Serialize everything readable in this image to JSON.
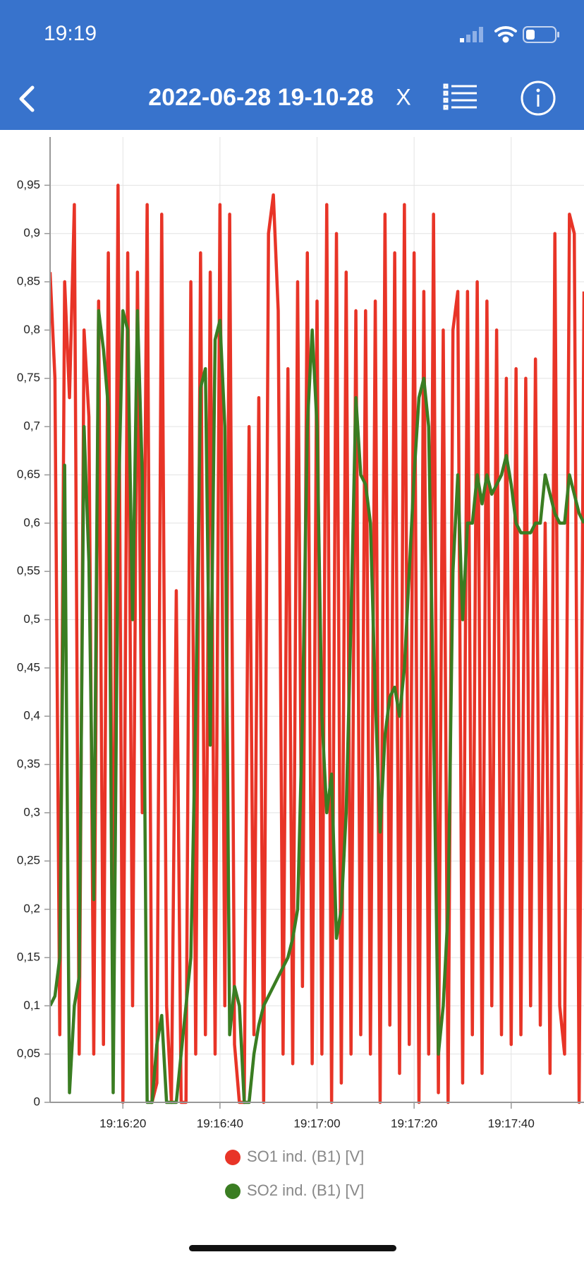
{
  "status_bar": {
    "time": "19:19"
  },
  "header": {
    "title": "2022-06-28 19-10-28",
    "close_label": "X"
  },
  "chart_data": {
    "type": "line",
    "x": [
      "19:16:05",
      "19:16:06",
      "19:16:07",
      "19:16:08",
      "19:16:09",
      "19:16:10",
      "19:16:11",
      "19:16:12",
      "19:16:13",
      "19:16:14",
      "19:16:15",
      "19:16:16",
      "19:16:17",
      "19:16:18",
      "19:16:19",
      "19:16:20",
      "19:16:21",
      "19:16:22",
      "19:16:23",
      "19:16:24",
      "19:16:25",
      "19:16:26",
      "19:16:27",
      "19:16:28",
      "19:16:29",
      "19:16:30",
      "19:16:31",
      "19:16:32",
      "19:16:33",
      "19:16:34",
      "19:16:35",
      "19:16:36",
      "19:16:37",
      "19:16:38",
      "19:16:39",
      "19:16:40",
      "19:16:41",
      "19:16:42",
      "19:16:43",
      "19:16:44",
      "19:16:45",
      "19:16:46",
      "19:16:47",
      "19:16:48",
      "19:16:49",
      "19:16:50",
      "19:16:51",
      "19:16:52",
      "19:16:53",
      "19:16:54",
      "19:16:55",
      "19:16:56",
      "19:16:57",
      "19:16:58",
      "19:16:59",
      "19:17:00",
      "19:17:01",
      "19:17:02",
      "19:17:03",
      "19:17:04",
      "19:17:05",
      "19:17:06",
      "19:17:07",
      "19:17:08",
      "19:17:09",
      "19:17:10",
      "19:17:11",
      "19:17:12",
      "19:17:13",
      "19:17:14",
      "19:17:15",
      "19:17:16",
      "19:17:17",
      "19:17:18",
      "19:17:19",
      "19:17:20",
      "19:17:21",
      "19:17:22",
      "19:17:23",
      "19:17:24",
      "19:17:25",
      "19:17:26",
      "19:17:27",
      "19:17:28",
      "19:17:29",
      "19:17:30",
      "19:17:31",
      "19:17:32",
      "19:17:33",
      "19:17:34",
      "19:17:35",
      "19:17:36",
      "19:17:37",
      "19:17:38",
      "19:17:39",
      "19:17:40",
      "19:17:41",
      "19:17:42",
      "19:17:43",
      "19:17:44",
      "19:17:45",
      "19:17:46",
      "19:17:47",
      "19:17:48",
      "19:17:49",
      "19:17:50",
      "19:17:51",
      "19:17:52",
      "19:17:53",
      "19:17:54",
      "19:17:55"
    ],
    "series": [
      {
        "name": "SO1 ind. (B1) [V]",
        "color": "#e83427",
        "values": [
          0.86,
          0.75,
          0.07,
          0.85,
          0.73,
          0.93,
          0.05,
          0.8,
          0.71,
          0.05,
          0.83,
          0.06,
          0.88,
          0.1,
          0.95,
          0.0,
          0.88,
          0.1,
          0.86,
          0.3,
          0.93,
          0.0,
          0.02,
          0.92,
          0.1,
          0.0,
          0.53,
          0.0,
          0.0,
          0.85,
          0.05,
          0.88,
          0.07,
          0.86,
          0.05,
          0.93,
          0.1,
          0.92,
          0.06,
          0.0,
          0.0,
          0.7,
          0.07,
          0.73,
          0.0,
          0.9,
          0.94,
          0.82,
          0.05,
          0.76,
          0.04,
          0.85,
          0.12,
          0.88,
          0.04,
          0.83,
          0.05,
          0.93,
          0.0,
          0.9,
          0.02,
          0.86,
          0.05,
          0.82,
          0.07,
          0.82,
          0.05,
          0.83,
          0.0,
          0.92,
          0.08,
          0.88,
          0.03,
          0.93,
          0.06,
          0.88,
          0.0,
          0.84,
          0.05,
          0.92,
          0.01,
          0.8,
          0.0,
          0.8,
          0.84,
          0.02,
          0.84,
          0.07,
          0.85,
          0.03,
          0.83,
          0.1,
          0.8,
          0.07,
          0.75,
          0.06,
          0.76,
          0.07,
          0.75,
          0.1,
          0.77,
          0.08,
          0.6,
          0.03,
          0.9,
          0.1,
          0.05,
          0.92,
          0.9,
          0.0,
          0.84
        ]
      },
      {
        "name": "SO2 ind. (B1) [V]",
        "color": "#3a7d22",
        "values": [
          0.1,
          0.11,
          0.15,
          0.66,
          0.01,
          0.1,
          0.13,
          0.7,
          0.56,
          0.21,
          0.82,
          0.78,
          0.72,
          0.01,
          0.6,
          0.82,
          0.8,
          0.5,
          0.82,
          0.65,
          0.0,
          0.0,
          0.06,
          0.09,
          0.0,
          0.0,
          0.0,
          0.05,
          0.1,
          0.15,
          0.4,
          0.74,
          0.76,
          0.37,
          0.79,
          0.81,
          0.7,
          0.07,
          0.12,
          0.1,
          0.0,
          0.0,
          0.05,
          0.08,
          0.1,
          0.11,
          0.12,
          0.13,
          0.14,
          0.15,
          0.17,
          0.2,
          0.4,
          0.7,
          0.8,
          0.7,
          0.4,
          0.3,
          0.34,
          0.17,
          0.2,
          0.3,
          0.5,
          0.73,
          0.65,
          0.64,
          0.6,
          0.42,
          0.28,
          0.38,
          0.42,
          0.43,
          0.4,
          0.45,
          0.55,
          0.65,
          0.73,
          0.75,
          0.7,
          0.4,
          0.05,
          0.1,
          0.2,
          0.55,
          0.65,
          0.5,
          0.6,
          0.6,
          0.65,
          0.62,
          0.65,
          0.63,
          0.64,
          0.65,
          0.67,
          0.64,
          0.6,
          0.59,
          0.59,
          0.59,
          0.6,
          0.6,
          0.65,
          0.63,
          0.61,
          0.6,
          0.6,
          0.65,
          0.63,
          0.61,
          0.6
        ]
      }
    ],
    "xlim": [
      "19:16:05",
      "19:17:55"
    ],
    "xticks": [
      "19:16:20",
      "19:16:40",
      "19:17:00",
      "19:17:20",
      "19:17:40"
    ],
    "ylim": [
      0,
      1
    ],
    "yticks": [
      0,
      {
        "value": 0.05,
        "label": "0,05"
      },
      {
        "value": 0.1,
        "label": "0,1"
      },
      {
        "value": 0.15,
        "label": "0,15"
      },
      {
        "value": 0.2,
        "label": "0,2"
      },
      {
        "value": 0.25,
        "label": "0,25"
      },
      {
        "value": 0.3,
        "label": "0,3"
      },
      {
        "value": 0.35,
        "label": "0,35"
      },
      {
        "value": 0.4,
        "label": "0,4"
      },
      {
        "value": 0.45,
        "label": "0,45"
      },
      {
        "value": 0.5,
        "label": "0,5"
      },
      {
        "value": 0.55,
        "label": "0,55"
      },
      {
        "value": 0.6,
        "label": "0,6"
      },
      {
        "value": 0.65,
        "label": "0,65"
      },
      {
        "value": 0.7,
        "label": "0,7"
      },
      {
        "value": 0.75,
        "label": "0,75"
      },
      {
        "value": 0.8,
        "label": "0,8"
      },
      {
        "value": 0.85,
        "label": "0,85"
      },
      {
        "value": 0.9,
        "label": "0,9"
      },
      {
        "value": 0.95,
        "label": "0,95"
      }
    ],
    "grid": true,
    "legend": "bottom"
  }
}
